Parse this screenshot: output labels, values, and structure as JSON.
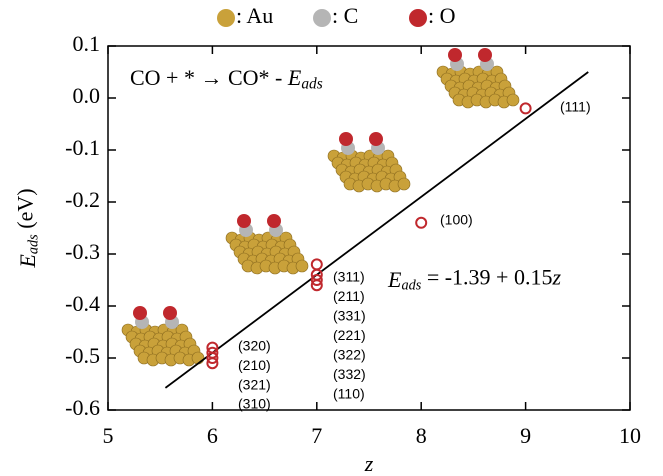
{
  "chart_data": {
    "type": "scatter",
    "legend": [
      {
        "name": ": Au",
        "color": "#c9a13a"
      },
      {
        "name": ": C",
        "color": "#b5b5b5"
      },
      {
        "name": ": O",
        "color": "#c0282d"
      }
    ],
    "x_label": "z",
    "y_label": [
      "E",
      "ads",
      "  (eV)"
    ],
    "reaction": [
      "CO + * → CO* - ",
      "E",
      "ads"
    ],
    "equation": [
      "E",
      "ads",
      " = -1.39 + 0.15",
      "z"
    ],
    "x": [
      6,
      6,
      6,
      6,
      7,
      7,
      7,
      7,
      8,
      9
    ],
    "values": [
      -0.48,
      -0.49,
      -0.5,
      -0.51,
      -0.32,
      -0.34,
      -0.35,
      -0.36,
      -0.24,
      -0.02
    ],
    "color": "#c0282d",
    "fit": {
      "intercept": -1.39,
      "slope": 0.15,
      "x_range": [
        5.55,
        9.6
      ]
    },
    "facet_labels": [
      [
        "(320)",
        "(210)",
        "(321)",
        "(310)"
      ],
      [
        "(311)",
        "(211)",
        "(331)",
        "(221)",
        "(322)",
        "(332)",
        "(110)"
      ],
      [
        "(100)"
      ],
      [
        "(111)"
      ]
    ],
    "xlim": [
      5,
      10
    ],
    "ylim": [
      -0.6,
      0.1
    ],
    "xticks": [
      5,
      6,
      7,
      8,
      9,
      10
    ],
    "yticks": [
      0.1,
      {
        "value": 0,
        "label": "0.0"
      },
      -0.1,
      -0.2,
      -0.3,
      -0.4,
      -0.5,
      -0.6
    ]
  }
}
